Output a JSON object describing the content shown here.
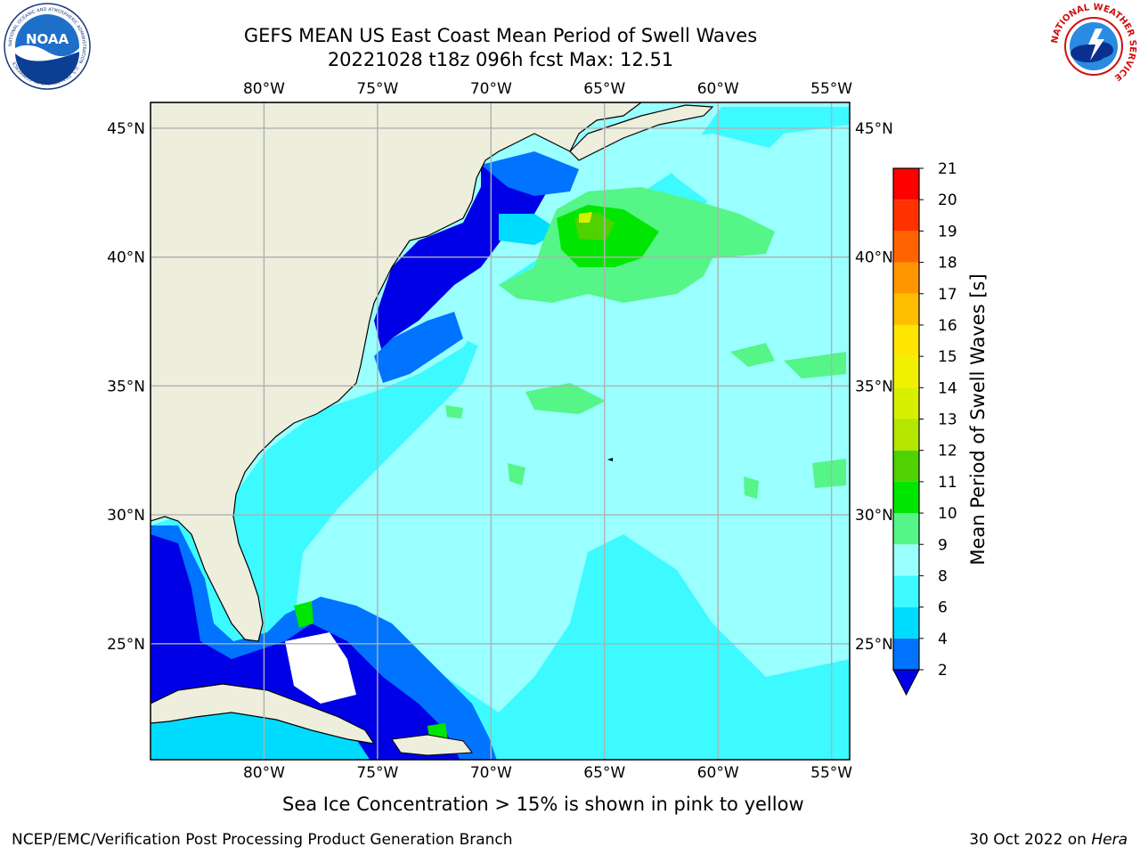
{
  "title_line1": "GEFS MEAN US East Coast Mean Period of Swell Waves",
  "title_line2": "20221028 t18z 096h fcst   Max: 12.51",
  "logos": {
    "left": {
      "text": "NOAA",
      "ring": "NATIONAL OCEANIC AND ATMOSPHERIC ADMINISTRATION · U.S. DEPARTMENT OF COMMERCE",
      "icon": "noaa-logo"
    },
    "right": {
      "ring": "NATIONAL WEATHER SERVICE",
      "icon": "nws-logo"
    }
  },
  "map": {
    "lon_range": [
      -85,
      -54.2
    ],
    "lat_range": [
      20.5,
      46
    ],
    "lon_ticks": [
      {
        "value": -80,
        "label": "80°W"
      },
      {
        "value": -75,
        "label": "75°W"
      },
      {
        "value": -70,
        "label": "70°W"
      },
      {
        "value": -65,
        "label": "65°W"
      },
      {
        "value": -60,
        "label": "60°W"
      },
      {
        "value": -55,
        "label": "55°W"
      }
    ],
    "lat_ticks": [
      {
        "value": 45,
        "label": "45°N"
      },
      {
        "value": 40,
        "label": "40°N"
      },
      {
        "value": 35,
        "label": "35°N"
      },
      {
        "value": 30,
        "label": "30°N"
      },
      {
        "value": 25,
        "label": "25°N"
      }
    ],
    "colors": {
      "land": "#eeeedd",
      "grid": "#b0b0b0",
      "ocean_base": "#99ffff"
    }
  },
  "colorbar": {
    "title": "Mean Period of Swell Waves [s]",
    "levels": [
      {
        "value": 2,
        "label": "2",
        "color": "#0073ff"
      },
      {
        "value": 4,
        "label": "4",
        "color": "#00dcff"
      },
      {
        "value": 6,
        "label": "6",
        "color": "#3cfaff"
      },
      {
        "value": 8,
        "label": "8",
        "color": "#99ffff"
      },
      {
        "value": 9,
        "label": "9",
        "color": "#55f587"
      },
      {
        "value": 10,
        "label": "10",
        "color": "#00e600"
      },
      {
        "value": 11,
        "label": "11",
        "color": "#4fd200"
      },
      {
        "value": 12,
        "label": "12",
        "color": "#b4e600"
      },
      {
        "value": 13,
        "label": "13",
        "color": "#d6f000"
      },
      {
        "value": 14,
        "label": "14",
        "color": "#f0f000"
      },
      {
        "value": 15,
        "label": "15",
        "color": "#ffe600"
      },
      {
        "value": 16,
        "label": "16",
        "color": "#ffbe00"
      },
      {
        "value": 17,
        "label": "17",
        "color": "#ff9600"
      },
      {
        "value": 18,
        "label": "18",
        "color": "#ff6400"
      },
      {
        "value": 19,
        "label": "19",
        "color": "#ff3200"
      },
      {
        "value": 20,
        "label": "20",
        "color": "#ff0000"
      },
      {
        "value": 21,
        "label": "21",
        "color": ""
      }
    ],
    "under_color": "#0000e6"
  },
  "sea_ice_note": "Sea Ice Concentration > 15% is shown in pink to yellow",
  "footer": {
    "left": "NCEP/EMC/Verification Post Processing Product Generation Branch",
    "date": "30 Oct 2022 on ",
    "host": "Hera"
  }
}
